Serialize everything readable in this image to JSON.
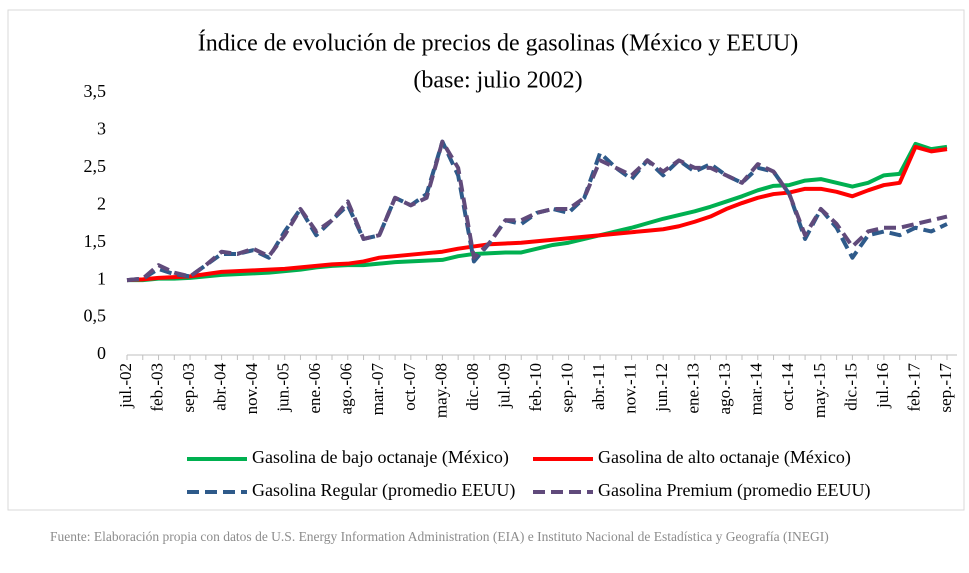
{
  "chart_data": {
    "type": "line",
    "title": "Índice de evolución de precios de gasolinas (México y EEUU)",
    "subtitle": "(base: julio 2002)",
    "source": "Fuente: Elaboración propia con datos de U.S. Energy Information Administration (EIA) e Instituto Nacional de Estadística y Geografía (INEGI)",
    "categories": [
      "jul.-02",
      null,
      "feb.-03",
      null,
      "sep.-03",
      null,
      "abr.-04",
      null,
      "nov.-04",
      null,
      "jun.-05",
      null,
      "ene.-06",
      null,
      "ago.-06",
      null,
      "mar.-07",
      null,
      "oct.-07",
      null,
      "may.-08",
      null,
      "dic.-08",
      null,
      "jul.-09",
      null,
      "feb.-10",
      null,
      "sep.-10",
      null,
      "abr.-11",
      null,
      "nov.-11",
      null,
      "jun.-12",
      null,
      "ene.-13",
      null,
      "ago.-13",
      null,
      "mar.-14",
      null,
      "oct.-14",
      null,
      "may.-15",
      null,
      "dic.-15",
      null,
      "jul.-16",
      null,
      "feb.-17",
      null,
      "sep.-17"
    ],
    "ylim": [
      0,
      3.5
    ],
    "yticks": [
      0,
      {
        "value": 0.5,
        "label": "0,5"
      },
      1,
      {
        "value": 1.5,
        "label": "1,5"
      },
      2,
      {
        "value": 2.5,
        "label": "2,5"
      },
      3,
      {
        "value": 3.5,
        "label": "3,5"
      }
    ],
    "grid": false,
    "series": [
      {
        "name": "Gasolina de bajo octanaje (México)",
        "color": "#00b050",
        "dashed": false,
        "values": [
          1.0,
          1.0,
          1.02,
          1.02,
          1.03,
          1.05,
          1.07,
          1.08,
          1.09,
          1.1,
          1.12,
          1.14,
          1.17,
          1.19,
          1.2,
          1.2,
          1.22,
          1.24,
          1.25,
          1.26,
          1.27,
          1.32,
          1.35,
          1.36,
          1.37,
          1.37,
          1.42,
          1.47,
          1.5,
          1.55,
          1.6,
          1.65,
          1.7,
          1.76,
          1.82,
          1.87,
          1.92,
          1.98,
          2.05,
          2.12,
          2.2,
          2.26,
          2.27,
          2.33,
          2.35,
          2.3,
          2.25,
          2.3,
          2.4,
          2.42,
          2.82,
          2.75,
          2.78
        ]
      },
      {
        "name": "Gasolina de alto octanaje (México)",
        "color": "#ff0000",
        "dashed": false,
        "values": [
          1.0,
          1.01,
          1.03,
          1.04,
          1.05,
          1.08,
          1.11,
          1.12,
          1.13,
          1.14,
          1.15,
          1.17,
          1.19,
          1.21,
          1.22,
          1.25,
          1.3,
          1.32,
          1.34,
          1.36,
          1.38,
          1.42,
          1.45,
          1.48,
          1.49,
          1.5,
          1.52,
          1.54,
          1.56,
          1.58,
          1.6,
          1.62,
          1.64,
          1.66,
          1.68,
          1.72,
          1.78,
          1.85,
          1.95,
          2.03,
          2.1,
          2.15,
          2.17,
          2.22,
          2.22,
          2.18,
          2.12,
          2.2,
          2.27,
          2.3,
          2.78,
          2.72,
          2.75
        ]
      },
      {
        "name": "Gasolina Regular (promedio EEUU)",
        "color": "#2e5a8a",
        "dashed": true,
        "values": [
          1.0,
          1.02,
          1.15,
          1.08,
          1.05,
          1.2,
          1.35,
          1.35,
          1.4,
          1.3,
          1.65,
          1.95,
          1.6,
          1.8,
          2.0,
          1.55,
          1.6,
          2.1,
          2.0,
          2.15,
          2.85,
          2.4,
          1.25,
          1.5,
          1.8,
          1.75,
          1.9,
          1.95,
          1.9,
          2.1,
          2.7,
          2.5,
          2.35,
          2.6,
          2.4,
          2.6,
          2.45,
          2.55,
          2.4,
          2.3,
          2.5,
          2.45,
          2.15,
          1.55,
          1.95,
          1.7,
          1.3,
          1.6,
          1.65,
          1.6,
          1.7,
          1.65,
          1.75
        ]
      },
      {
        "name": "Gasolina Premium (promedio EEUU)",
        "color": "#604a7b",
        "dashed": true,
        "values": [
          1.0,
          1.02,
          1.2,
          1.1,
          1.05,
          1.2,
          1.38,
          1.35,
          1.42,
          1.32,
          1.6,
          1.95,
          1.65,
          1.8,
          2.05,
          1.55,
          1.6,
          2.1,
          2.0,
          2.1,
          2.85,
          2.5,
          1.3,
          1.5,
          1.8,
          1.8,
          1.9,
          1.95,
          1.95,
          2.1,
          2.6,
          2.5,
          2.4,
          2.6,
          2.45,
          2.6,
          2.5,
          2.5,
          2.4,
          2.3,
          2.55,
          2.45,
          2.15,
          1.6,
          1.95,
          1.75,
          1.45,
          1.65,
          1.7,
          1.7,
          1.75,
          1.8,
          1.85
        ]
      }
    ]
  }
}
